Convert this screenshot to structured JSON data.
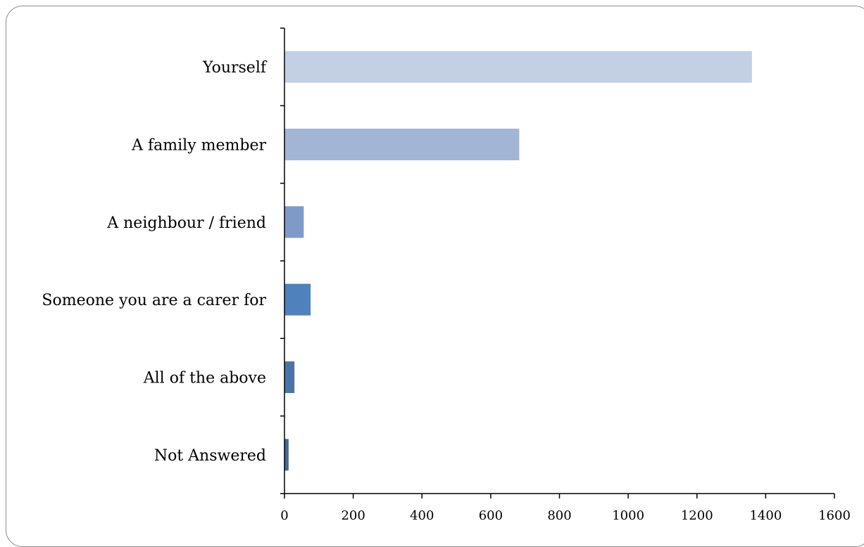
{
  "chart_data": {
    "type": "bar",
    "orientation": "horizontal",
    "categories": [
      "Yourself",
      "A family member",
      "A neighbour / friend",
      "Someone you are a carer for",
      "All of the above",
      "Not Answered"
    ],
    "values": [
      1360,
      683,
      56,
      76,
      29,
      12
    ],
    "bar_colors": [
      "#c3cfe3",
      "#a3b5d5",
      "#7f9ac8",
      "#4f81bd",
      "#4a74a8",
      "#446a9a"
    ],
    "xlim": [
      0,
      1600
    ],
    "xticks": [
      "0",
      "200",
      "400",
      "600",
      "800",
      "1000",
      "1200",
      "1400",
      "1600"
    ],
    "grid": false,
    "legend": "none"
  }
}
